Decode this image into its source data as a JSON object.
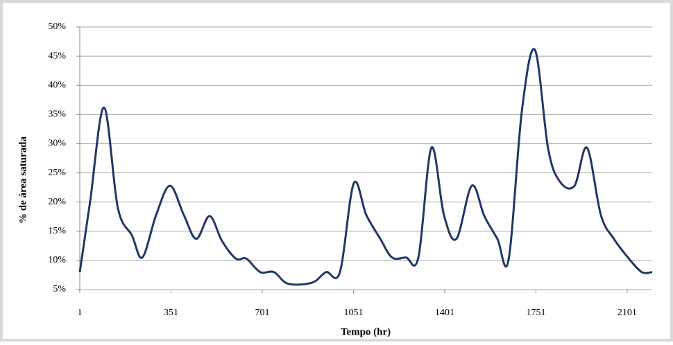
{
  "chart_data": {
    "type": "line",
    "x_label": "Tempo (hr)",
    "y_label": "% de área saturada",
    "xlim": [
      1,
      2197
    ],
    "xticks": [
      1,
      351,
      701,
      1051,
      1401,
      1751,
      2101
    ],
    "ylim": [
      5,
      50
    ],
    "yticks": [
      {
        "value": 5,
        "label": "5%"
      },
      {
        "value": 10,
        "label": "10%"
      },
      {
        "value": 15,
        "label": "15%"
      },
      {
        "value": 20,
        "label": "20%"
      },
      {
        "value": 25,
        "label": "25%"
      },
      {
        "value": 30,
        "label": "30%"
      },
      {
        "value": 35,
        "label": "35%"
      },
      {
        "value": 40,
        "label": "40%"
      },
      {
        "value": 45,
        "label": "45%"
      },
      {
        "value": 50,
        "label": "50%"
      }
    ],
    "grid": true,
    "series": [
      {
        "color": "#1f3864",
        "x": [
          1,
          41,
          94,
          147,
          201,
          241,
          294,
          347,
          400,
          448,
          499,
          547,
          600,
          640,
          693,
          746,
          800,
          893,
          946,
          999,
          1052,
          1100,
          1154,
          1199,
          1252,
          1300,
          1350,
          1398,
          1446,
          1505,
          1553,
          1603,
          1646,
          1697,
          1747,
          1798,
          1843,
          1899,
          1947,
          2000,
          2050,
          2104,
          2157,
          2197
        ],
        "values": [
          8,
          20.2,
          36.2,
          19,
          14.3,
          10.5,
          17.8,
          22.8,
          17.8,
          13.7,
          17.6,
          13.3,
          10.3,
          10.3,
          8,
          8,
          6,
          6.2,
          8,
          8,
          23.2,
          17.8,
          13.7,
          10.5,
          10.5,
          10.5,
          29.3,
          17.8,
          13.7,
          22.8,
          17.6,
          13.7,
          10.1,
          35.6,
          46.1,
          29.1,
          23.5,
          22.8,
          29.3,
          17.8,
          13.7,
          10.5,
          8,
          8
        ]
      }
    ]
  }
}
